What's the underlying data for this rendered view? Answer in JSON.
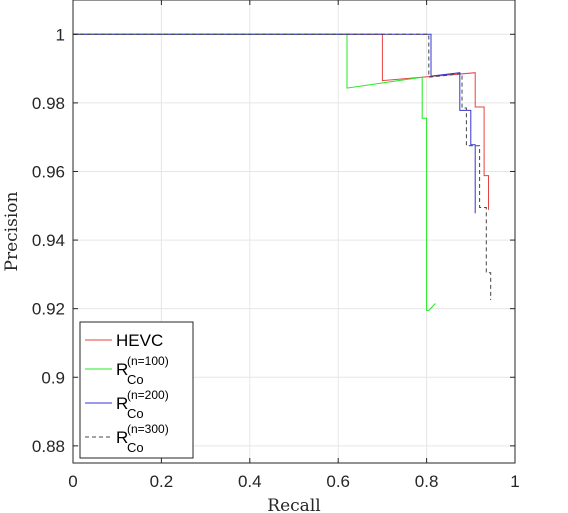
{
  "chart_data": {
    "type": "line",
    "xlabel": "Recall",
    "ylabel": "Precision",
    "xlim": [
      0,
      1
    ],
    "ylim": [
      0.875,
      1.01
    ],
    "xticks": [
      0,
      0.2,
      0.4,
      0.6,
      0.8,
      1
    ],
    "yticks": [
      0.88,
      0.9,
      0.92,
      0.94,
      0.96,
      0.98,
      1
    ],
    "xtick_labels": [
      "0",
      "0.2",
      "0.4",
      "0.6",
      "0.8",
      "1"
    ],
    "ytick_labels": [
      "0.88",
      "0.9",
      "0.92",
      "0.94",
      "0.96",
      "0.98",
      "1"
    ],
    "grid": true,
    "legend_position": "bottom-left",
    "series": [
      {
        "name": "HEVC",
        "legend_base": "HEVC",
        "color": "#e8423f",
        "dash": "",
        "x": [
          0,
          0.7,
          0.7,
          0.7,
          0.91,
          0.91,
          0.92,
          0.93,
          0.93,
          0.94,
          0.94
        ],
        "y": [
          1,
          1,
          0.9865,
          0.9865,
          0.9888,
          0.9788,
          0.9788,
          0.9788,
          0.9588,
          0.9588,
          0.9488
        ]
      },
      {
        "name": "R_Co^(n=100)",
        "legend_base": "R",
        "legend_sub": "Co",
        "legend_sup": "(n=100)",
        "color": "#22e822",
        "dash": "",
        "x": [
          0,
          0.62,
          0.62,
          0.79,
          0.79,
          0.8,
          0.8,
          0.805,
          0.82
        ],
        "y": [
          1,
          1,
          0.9843,
          0.9875,
          0.9755,
          0.9755,
          0.9195,
          0.9195,
          0.9215
        ]
      },
      {
        "name": "R_Co^(n=200)",
        "legend_base": "R",
        "legend_sub": "Co",
        "legend_sup": "(n=200)",
        "color": "#3434d6",
        "dash": "",
        "x": [
          0,
          0.81,
          0.81,
          0.875,
          0.875,
          0.885,
          0.885,
          0.9,
          0.9,
          0.91,
          0.91
        ],
        "y": [
          1,
          1,
          0.9878,
          0.9888,
          0.9778,
          0.9778,
          0.9778,
          0.9778,
          0.9678,
          0.9678,
          0.9478
        ]
      },
      {
        "name": "R_Co^(n=300)",
        "legend_base": "R",
        "legend_sub": "Co",
        "legend_sup": "(n=300)",
        "color": "#444444",
        "dash": "4,3",
        "x": [
          0,
          0.805,
          0.805,
          0.88,
          0.88,
          0.89,
          0.89,
          0.92,
          0.92,
          0.935,
          0.935,
          0.945,
          0.945
        ],
        "y": [
          1,
          1,
          0.9875,
          0.9885,
          0.9785,
          0.9785,
          0.9675,
          0.9675,
          0.9495,
          0.9495,
          0.9305,
          0.9305,
          0.9225
        ]
      }
    ]
  }
}
